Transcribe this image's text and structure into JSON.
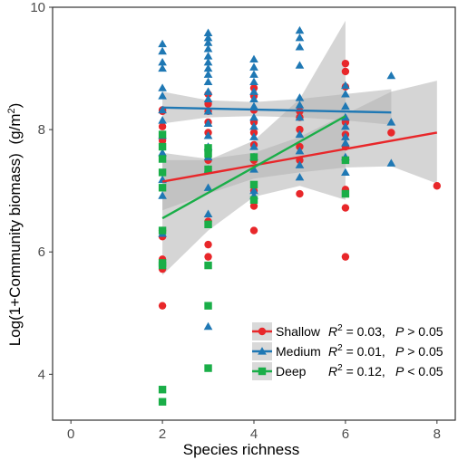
{
  "chart_data": {
    "type": "scatter",
    "xlabel": "Species richness",
    "ylabel": "Log(1+Community biomass)",
    "ylabel_unit_base": "(g/m",
    "ylabel_unit_exp": "2",
    "ylabel_unit_close": ")",
    "xlim": [
      -0.4,
      8.4
    ],
    "ylim": [
      3.25,
      10
    ],
    "x_ticks": [
      0,
      2,
      4,
      6,
      8
    ],
    "y_ticks": [
      4,
      6,
      8,
      10
    ],
    "grid": false,
    "legend_position": "bottom-right",
    "series": [
      {
        "name": "Shallow",
        "color": "#E8272A",
        "marker": "circle",
        "stat_r2_label": "R",
        "stat_r2_value": "= 0.03,",
        "stat_p_label": "P",
        "stat_p_value": "> 0.05",
        "fit": {
          "x": [
            2,
            8
          ],
          "y": [
            7.15,
            7.95
          ]
        },
        "band_upper": [
          7.62,
          7.52,
          7.62,
          7.88,
          8.25,
          8.62,
          8.8
        ],
        "band_lower": [
          6.68,
          6.95,
          7.2,
          7.3,
          7.38,
          7.4,
          7.12
        ],
        "points": [
          [
            2,
            5.12
          ],
          [
            2,
            5.72
          ],
          [
            2,
            5.88
          ],
          [
            2,
            6.25
          ],
          [
            2,
            6.35
          ],
          [
            2,
            7.82
          ],
          [
            2,
            8.05
          ],
          [
            2,
            8.3
          ],
          [
            2,
            8.32
          ],
          [
            3,
            5.92
          ],
          [
            3,
            6.12
          ],
          [
            3,
            6.5
          ],
          [
            3,
            7.5
          ],
          [
            3,
            7.95
          ],
          [
            3,
            8.12
          ],
          [
            3,
            8.3
          ],
          [
            3,
            8.42
          ],
          [
            3,
            8.58
          ],
          [
            4,
            6.35
          ],
          [
            4,
            6.75
          ],
          [
            4,
            7.0
          ],
          [
            4,
            7.5
          ],
          [
            4,
            7.75
          ],
          [
            4,
            7.95
          ],
          [
            4,
            8.12
          ],
          [
            4,
            8.32
          ],
          [
            4,
            8.55
          ],
          [
            4,
            8.68
          ],
          [
            5,
            6.95
          ],
          [
            5,
            7.5
          ],
          [
            5,
            7.72
          ],
          [
            5,
            8.0
          ],
          [
            5,
            8.2
          ],
          [
            5,
            8.3
          ],
          [
            6,
            5.92
          ],
          [
            6,
            6.72
          ],
          [
            6,
            7.02
          ],
          [
            6,
            7.72
          ],
          [
            6,
            7.92
          ],
          [
            6,
            8.12
          ],
          [
            6,
            8.7
          ],
          [
            6,
            8.95
          ],
          [
            6,
            9.08
          ],
          [
            7,
            7.95
          ],
          [
            8,
            7.08
          ]
        ]
      },
      {
        "name": "Medium",
        "color": "#1F78B4",
        "marker": "triangle",
        "stat_r2_label": "R",
        "stat_r2_value": "= 0.01,",
        "stat_p_label": "P",
        "stat_p_value": "> 0.05",
        "fit": {
          "x": [
            2,
            7
          ],
          "y": [
            8.36,
            8.28
          ]
        },
        "band_upper": [
          8.62,
          8.48,
          8.45,
          8.5,
          8.58,
          8.66
        ],
        "band_lower": [
          8.1,
          8.2,
          8.22,
          8.2,
          8.15,
          8.08
        ],
        "points": [
          [
            2,
            9.4
          ],
          [
            2,
            9.28
          ],
          [
            2,
            9.1
          ],
          [
            2,
            9.0
          ],
          [
            2,
            8.68
          ],
          [
            2,
            8.55
          ],
          [
            2,
            8.32
          ],
          [
            2,
            8.15
          ],
          [
            2,
            7.9
          ],
          [
            2,
            7.62
          ],
          [
            2,
            7.18
          ],
          [
            2,
            6.92
          ],
          [
            2,
            6.3
          ],
          [
            3,
            9.58
          ],
          [
            3,
            9.5
          ],
          [
            3,
            9.42
          ],
          [
            3,
            9.32
          ],
          [
            3,
            9.2
          ],
          [
            3,
            9.1
          ],
          [
            3,
            9.0
          ],
          [
            3,
            8.9
          ],
          [
            3,
            8.78
          ],
          [
            3,
            8.62
          ],
          [
            3,
            8.5
          ],
          [
            3,
            8.3
          ],
          [
            3,
            8.1
          ],
          [
            3,
            7.9
          ],
          [
            3,
            7.72
          ],
          [
            3,
            7.55
          ],
          [
            3,
            7.35
          ],
          [
            3,
            7.05
          ],
          [
            3,
            6.62
          ],
          [
            3,
            4.78
          ],
          [
            4,
            9.15
          ],
          [
            4,
            9.02
          ],
          [
            4,
            8.9
          ],
          [
            4,
            8.78
          ],
          [
            4,
            8.62
          ],
          [
            4,
            8.5
          ],
          [
            4,
            8.38
          ],
          [
            4,
            8.2
          ],
          [
            4,
            8.05
          ],
          [
            4,
            7.88
          ],
          [
            4,
            7.72
          ],
          [
            4,
            7.55
          ],
          [
            4,
            7.35
          ],
          [
            4,
            7.0
          ],
          [
            4,
            6.92
          ],
          [
            5,
            9.62
          ],
          [
            5,
            9.5
          ],
          [
            5,
            9.35
          ],
          [
            5,
            9.05
          ],
          [
            5,
            8.52
          ],
          [
            5,
            8.4
          ],
          [
            5,
            8.2
          ],
          [
            5,
            7.92
          ],
          [
            5,
            7.65
          ],
          [
            5,
            7.42
          ],
          [
            5,
            7.22
          ],
          [
            6,
            8.72
          ],
          [
            6,
            8.58
          ],
          [
            6,
            8.38
          ],
          [
            6,
            8.2
          ],
          [
            6,
            8.05
          ],
          [
            6,
            7.88
          ],
          [
            6,
            7.78
          ],
          [
            6,
            7.55
          ],
          [
            6,
            7.3
          ],
          [
            7,
            8.88
          ],
          [
            7,
            8.12
          ],
          [
            7,
            7.45
          ]
        ]
      },
      {
        "name": "Deep",
        "color": "#1AAE48",
        "marker": "square",
        "stat_r2_label": "R",
        "stat_r2_value": "= 0.12,",
        "stat_p_label": "P",
        "stat_p_value": "< 0.05",
        "fit": {
          "x": [
            2,
            6
          ],
          "y": [
            6.55,
            8.22
          ]
        },
        "band_upper": [
          7.5,
          7.5,
          7.82,
          8.5,
          9.78
        ],
        "band_lower": [
          5.62,
          6.35,
          6.9,
          7.08,
          6.85
        ],
        "points": [
          [
            2,
            3.55
          ],
          [
            2,
            3.75
          ],
          [
            2,
            5.78
          ],
          [
            2,
            5.82
          ],
          [
            2,
            6.35
          ],
          [
            2,
            7.05
          ],
          [
            2,
            7.3
          ],
          [
            2,
            7.52
          ],
          [
            2,
            7.72
          ],
          [
            2,
            7.92
          ],
          [
            3,
            4.1
          ],
          [
            3,
            5.12
          ],
          [
            3,
            5.78
          ],
          [
            3,
            6.45
          ],
          [
            3,
            7.35
          ],
          [
            3,
            7.6
          ],
          [
            3,
            7.7
          ],
          [
            4,
            6.85
          ],
          [
            4,
            7.1
          ],
          [
            4,
            7.55
          ],
          [
            6,
            6.95
          ],
          [
            6,
            7.5
          ]
        ]
      }
    ]
  }
}
